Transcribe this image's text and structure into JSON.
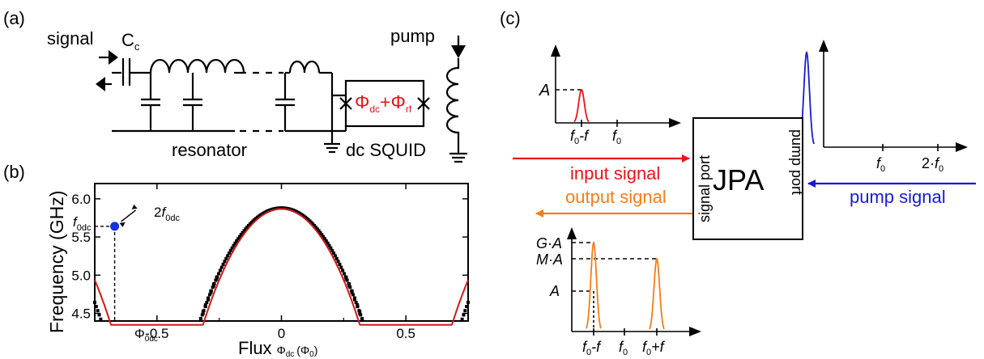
{
  "panels": {
    "a": "(a)",
    "b": "(b)",
    "c": "(c)"
  },
  "circuit": {
    "signal": "signal",
    "cap_main": "C",
    "cap_sub": "c",
    "pump": "pump",
    "resonator": "resonator",
    "squid": "dc SQUID",
    "flux_dc": "Φ",
    "flux_dc_sub": "dc",
    "plus": "+",
    "flux_rf": "Φ",
    "flux_rf_sub": "rf",
    "accent": "#e8141b"
  },
  "chart_data": {
    "type": "line",
    "xlabel": "Flux",
    "xlabel_phi": "Φ",
    "xlabel_phi_sub": "dc",
    "xlabel_unit": "(Φ",
    "xlabel_unit_sub": "0",
    "xlabel_unit_close": ")",
    "ylabel": "Frequency (GHz)",
    "xlim": [
      -0.75,
      0.75
    ],
    "ylim": [
      4.4,
      6.2
    ],
    "xticks": [
      -0.5,
      0,
      0.5
    ],
    "xtick_labels": [
      "-0.5",
      "0",
      "0.5"
    ],
    "yticks": [
      4.5,
      5.0,
      5.5,
      6.0
    ],
    "ytick_labels": [
      "4.5",
      "5.0",
      "5.5",
      "6.0"
    ],
    "series": [
      {
        "kind": "measured",
        "color": "#000000",
        "f_max": 5.88,
        "phi_c": 0.525
      },
      {
        "kind": "fit",
        "color": "#cc1a1a",
        "f_max": 5.87,
        "phi_c": 0.5
      }
    ],
    "operating_point": {
      "x": -0.67,
      "y": 5.64,
      "color": "#1730e0"
    },
    "annotations": {
      "f0dc_main": "f",
      "f0dc_sub": "0dc",
      "two_f0dc_pre": "2",
      "two_f0dc_main": "f",
      "two_f0dc_sub": "0dc",
      "phi0dc_main": "Φ",
      "phi0dc_sub": "0dc"
    }
  },
  "jpa": {
    "box_label": "JPA",
    "signal_port": "signal port",
    "pump_port": "pump port",
    "input_signal": "input signal",
    "output_signal": "output signal",
    "pump_signal": "pump signal",
    "input_color": "#e8141b",
    "output_color": "#f57d1a",
    "pump_color": "#1a1ad0",
    "spectra": {
      "input": {
        "A": "A",
        "tick1_main": "f",
        "tick1_sub": "0",
        "tick1_rest": "-f",
        "tick2_main": "f",
        "tick2_sub": "0"
      },
      "pump": {
        "tick1_main": "f",
        "tick1_sub": "0",
        "tick2_pre": "2·",
        "tick2_main": "f",
        "tick2_sub": "0"
      },
      "output": {
        "GA": "G·A",
        "MA": "M·A",
        "A": "A",
        "tick1_main": "f",
        "tick1_sub": "0",
        "tick1_rest": "-f",
        "tick2_main": "f",
        "tick2_sub": "0",
        "tick3_main": "f",
        "tick3_sub": "0",
        "tick3_rest": "+f"
      }
    }
  }
}
